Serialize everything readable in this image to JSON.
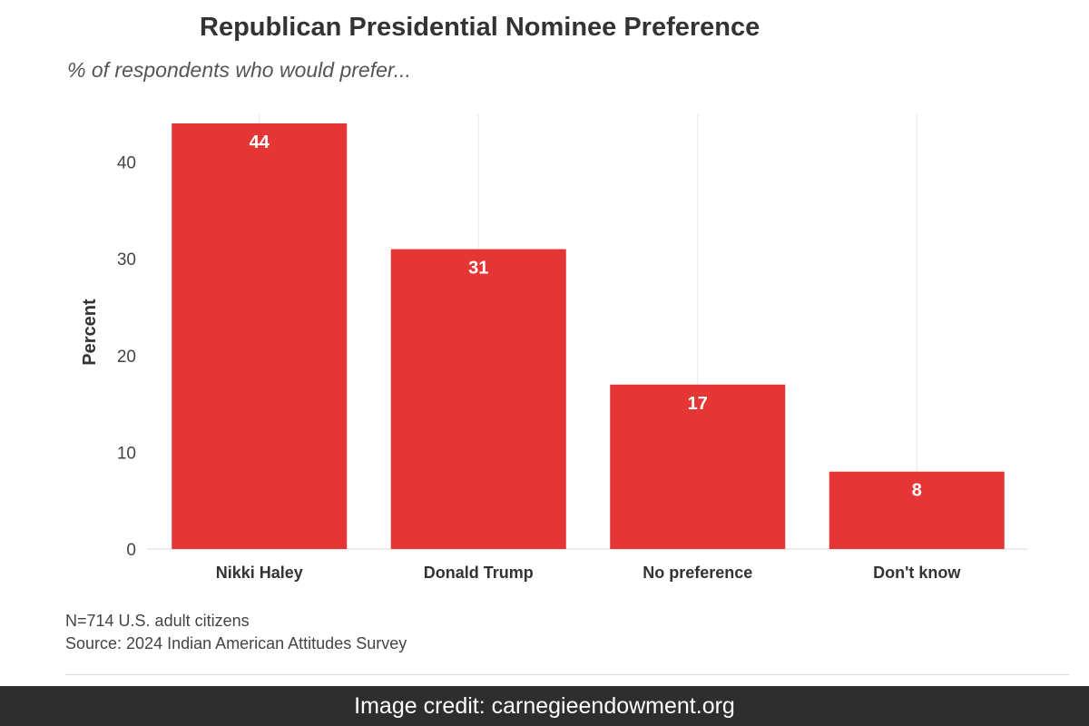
{
  "chart_data": {
    "type": "bar",
    "title": "Republican Presidential Nominee Preference",
    "subtitle": "% of respondents who would prefer...",
    "xlabel": "",
    "ylabel": "Percent",
    "categories": [
      "Nikki Haley",
      "Donald Trump",
      "No preference",
      "Don't know"
    ],
    "values": [
      44,
      31,
      17,
      8
    ],
    "data_labels": [
      "44",
      "31",
      "17",
      "8"
    ],
    "yticks": [
      0,
      10,
      20,
      30,
      40
    ],
    "ylim": [
      0,
      45
    ],
    "grid": "vertical",
    "legend": "none",
    "bar_color": "#e63535",
    "label_color": "#ffffff",
    "grid_color": "#e6e6e6"
  },
  "notes": {
    "sample": "N=714 U.S. adult citizens",
    "source": "Source: 2024 Indian American Attitudes Survey"
  },
  "credit": "Image credit: carnegieendowment.org"
}
